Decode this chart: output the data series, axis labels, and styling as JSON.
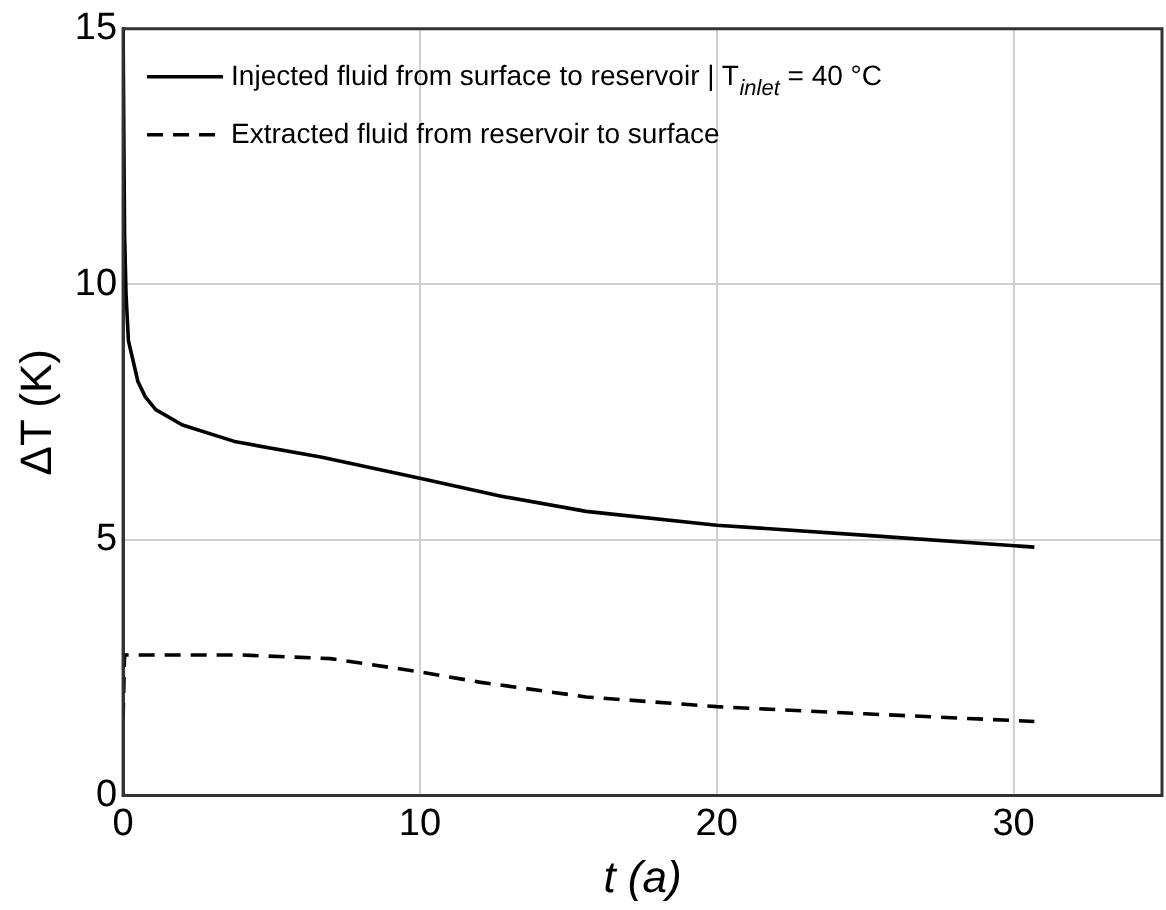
{
  "chart_data": {
    "type": "line",
    "xlabel": "t (a)",
    "ylabel": "ΔT (K)",
    "xlim": [
      0,
      35
    ],
    "ylim": [
      0,
      15
    ],
    "xticks": [
      0,
      10,
      20,
      30
    ],
    "yticks": [
      0,
      5,
      10,
      15
    ],
    "grid": true,
    "legend": "top left",
    "marker": "none",
    "series": [
      {
        "name": "Injected fluid from surface to reservoir | T$_{inlet}$ = 40 °C",
        "color": "#000000",
        "line_style": "solid",
        "x": [
          0,
          0.05,
          0.1,
          0.18,
          0.3,
          0.5,
          0.75,
          1.1,
          2,
          3.8,
          6.7,
          10,
          12.7,
          15.6,
          20,
          25.3,
          30.7
        ],
        "values": [
          15,
          11,
          9.8,
          8.9,
          8.6,
          8.1,
          7.8,
          7.55,
          7.25,
          6.92,
          6.62,
          6.21,
          5.86,
          5.56,
          5.29,
          5.08,
          4.86
        ]
      },
      {
        "name": "Extracted fluid from reservoir to surface",
        "color": "#000000",
        "line_style": "dashed",
        "x": [
          0,
          0.05,
          2,
          4,
          7,
          10,
          12,
          15.6,
          20,
          25,
          30.7
        ],
        "values": [
          1.5,
          2.75,
          2.75,
          2.75,
          2.68,
          2.42,
          2.22,
          1.93,
          1.74,
          1.6,
          1.45
        ]
      }
    ]
  }
}
